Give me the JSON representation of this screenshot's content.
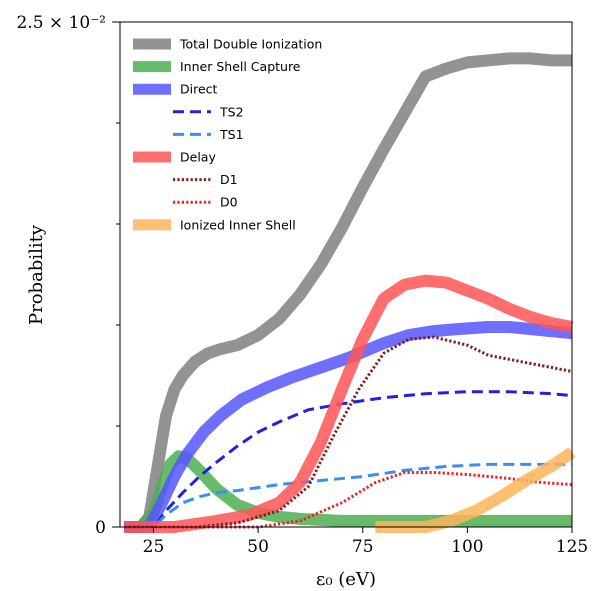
{
  "chart_data": {
    "type": "line",
    "title": "",
    "xlabel": "ε₀ (eV)",
    "ylabel": "Probability",
    "xlim": [
      17,
      125
    ],
    "ylim": [
      0,
      0.025
    ],
    "x_ticks": [
      25,
      50,
      75,
      100,
      125
    ],
    "x_tick_labels": [
      "25",
      "50",
      "75",
      "100",
      "125"
    ],
    "y_tick_labels": [
      {
        "value": 0,
        "label": "0"
      },
      {
        "value": 0.025,
        "label": "2.5 × 10⁻²"
      }
    ],
    "y_minor_ticks": [
      0.005,
      0.01,
      0.015,
      0.02
    ],
    "grid": false,
    "legend_position": "top-left",
    "series": [
      {
        "name": "Total Double Ionization",
        "color": "#808080",
        "style": "solid",
        "width": "thick",
        "points": [
          [
            18,
            0
          ],
          [
            22,
            0
          ],
          [
            24,
            0.0005
          ],
          [
            26,
            0.003
          ],
          [
            28,
            0.0055
          ],
          [
            30,
            0.0068
          ],
          [
            32,
            0.0075
          ],
          [
            35,
            0.0082
          ],
          [
            38,
            0.0086
          ],
          [
            41,
            0.0088
          ],
          [
            45,
            0.009
          ],
          [
            50,
            0.0095
          ],
          [
            55,
            0.0103
          ],
          [
            60,
            0.0115
          ],
          [
            65,
            0.013
          ],
          [
            70,
            0.0148
          ],
          [
            75,
            0.0168
          ],
          [
            80,
            0.0187
          ],
          [
            85,
            0.0205
          ],
          [
            90,
            0.0223
          ],
          [
            95,
            0.0227
          ],
          [
            100,
            0.023
          ],
          [
            105,
            0.0231
          ],
          [
            110,
            0.0232
          ],
          [
            115,
            0.0232
          ],
          [
            120,
            0.0231
          ],
          [
            125,
            0.0231
          ]
        ]
      },
      {
        "name": "Inner Shell Capture",
        "color": "#4caf50",
        "style": "solid",
        "width": "thick",
        "points": [
          [
            18,
            0
          ],
          [
            22,
            0
          ],
          [
            25,
            0.0007
          ],
          [
            27,
            0.002
          ],
          [
            29,
            0.0031
          ],
          [
            31,
            0.0035
          ],
          [
            33,
            0.0034
          ],
          [
            36,
            0.0028
          ],
          [
            40,
            0.0019
          ],
          [
            45,
            0.0011
          ],
          [
            50,
            0.0007
          ],
          [
            55,
            0.0005
          ],
          [
            60,
            0.0004
          ],
          [
            70,
            0.0003
          ],
          [
            80,
            0.0003
          ],
          [
            100,
            0.0003
          ],
          [
            125,
            0.0003
          ]
        ]
      },
      {
        "name": "Direct",
        "color": "#5555ff",
        "style": "solid",
        "width": "thick",
        "points": [
          [
            18,
            0
          ],
          [
            24,
            0
          ],
          [
            27,
            0.0012
          ],
          [
            30,
            0.0025
          ],
          [
            33,
            0.0036
          ],
          [
            37,
            0.0047
          ],
          [
            41,
            0.0055
          ],
          [
            46,
            0.0063
          ],
          [
            52,
            0.0069
          ],
          [
            58,
            0.0074
          ],
          [
            65,
            0.0079
          ],
          [
            72,
            0.0084
          ],
          [
            80,
            0.0091
          ],
          [
            86,
            0.0095
          ],
          [
            92,
            0.0097
          ],
          [
            98,
            0.0098
          ],
          [
            105,
            0.0099
          ],
          [
            110,
            0.0099
          ],
          [
            115,
            0.0098
          ],
          [
            120,
            0.0097
          ],
          [
            125,
            0.0096
          ]
        ]
      },
      {
        "name": "TS2",
        "color": "#2222dd",
        "style": "dashed",
        "width": "medium",
        "points": [
          [
            18,
            0
          ],
          [
            25,
            0
          ],
          [
            28,
            0.0008
          ],
          [
            32,
            0.0017
          ],
          [
            36,
            0.0025
          ],
          [
            40,
            0.0032
          ],
          [
            45,
            0.004
          ],
          [
            50,
            0.0047
          ],
          [
            55,
            0.0052
          ],
          [
            62,
            0.0058
          ],
          [
            70,
            0.0061
          ],
          [
            80,
            0.0064
          ],
          [
            90,
            0.0066
          ],
          [
            100,
            0.0067
          ],
          [
            110,
            0.0067
          ],
          [
            120,
            0.0066
          ],
          [
            125,
            0.0065
          ]
        ]
      },
      {
        "name": "TS1",
        "color": "#3a8ff0",
        "style": "dashed",
        "width": "medium",
        "points": [
          [
            18,
            0
          ],
          [
            25,
            0
          ],
          [
            28,
            0.0006
          ],
          [
            32,
            0.0012
          ],
          [
            36,
            0.0015
          ],
          [
            40,
            0.0017
          ],
          [
            45,
            0.0018
          ],
          [
            55,
            0.0021
          ],
          [
            65,
            0.0023
          ],
          [
            75,
            0.0025
          ],
          [
            85,
            0.0028
          ],
          [
            95,
            0.003
          ],
          [
            105,
            0.0031
          ],
          [
            115,
            0.0031
          ],
          [
            125,
            0.0031
          ]
        ]
      },
      {
        "name": "Delay",
        "color": "#ff5555",
        "style": "solid",
        "width": "thick",
        "points": [
          [
            18,
            0
          ],
          [
            30,
            0
          ],
          [
            40,
            0.0003
          ],
          [
            48,
            0.0006
          ],
          [
            55,
            0.0012
          ],
          [
            60,
            0.0022
          ],
          [
            65,
            0.0042
          ],
          [
            70,
            0.0068
          ],
          [
            75,
            0.0093
          ],
          [
            80,
            0.0113
          ],
          [
            85,
            0.012
          ],
          [
            90,
            0.0122
          ],
          [
            95,
            0.0121
          ],
          [
            100,
            0.0117
          ],
          [
            105,
            0.0113
          ],
          [
            110,
            0.0108
          ],
          [
            115,
            0.0104
          ],
          [
            120,
            0.0101
          ],
          [
            125,
            0.0099
          ]
        ]
      },
      {
        "name": "D1",
        "color": "#8b1a1a",
        "style": "dotted",
        "width": "medium",
        "points": [
          [
            18,
            0
          ],
          [
            35,
            0
          ],
          [
            45,
            0.0002
          ],
          [
            55,
            0.0008
          ],
          [
            62,
            0.002
          ],
          [
            68,
            0.0045
          ],
          [
            74,
            0.0068
          ],
          [
            80,
            0.0086
          ],
          [
            86,
            0.0093
          ],
          [
            92,
            0.0094
          ],
          [
            100,
            0.009
          ],
          [
            105,
            0.0085
          ],
          [
            110,
            0.0083
          ],
          [
            115,
            0.0081
          ],
          [
            120,
            0.0079
          ],
          [
            125,
            0.0077
          ]
        ]
      },
      {
        "name": "D0",
        "color": "#ee2222",
        "style": "dotted",
        "width": "medium",
        "points": [
          [
            18,
            0
          ],
          [
            50,
            0
          ],
          [
            60,
            0.0003
          ],
          [
            70,
            0.0012
          ],
          [
            78,
            0.0022
          ],
          [
            85,
            0.0027
          ],
          [
            92,
            0.0027
          ],
          [
            100,
            0.0026
          ],
          [
            110,
            0.0024
          ],
          [
            118,
            0.0022
          ],
          [
            125,
            0.0021
          ]
        ]
      },
      {
        "name": "Ionized Inner Shell",
        "color": "#ffb45a",
        "style": "solid",
        "width": "thick",
        "points": [
          [
            78,
            0
          ],
          [
            90,
            0
          ],
          [
            96,
            0.0003
          ],
          [
            102,
            0.0008
          ],
          [
            108,
            0.0015
          ],
          [
            114,
            0.0023
          ],
          [
            120,
            0.003
          ],
          [
            125,
            0.0037
          ]
        ]
      }
    ]
  }
}
